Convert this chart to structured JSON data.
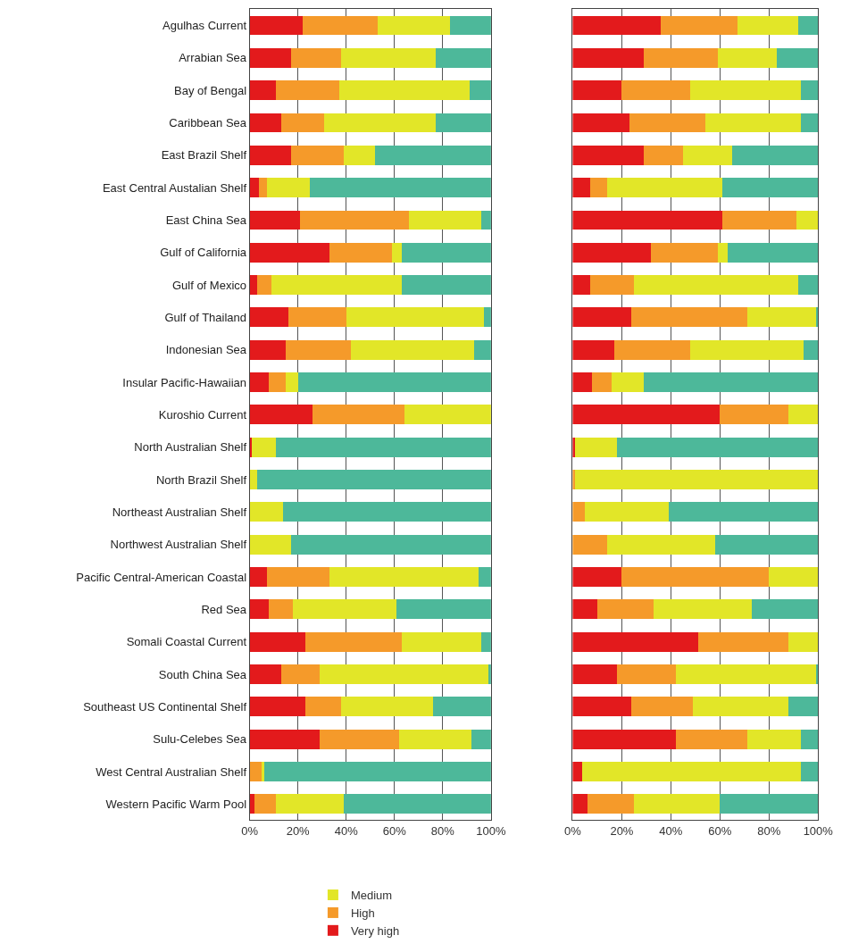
{
  "chart_data": [
    {
      "type": "bar",
      "orientation": "horizontal",
      "stacked": true,
      "grid": "x",
      "legend": "bottom",
      "categories": [
        "Agulhas Current",
        "Arrabian Sea",
        "Bay of Bengal",
        "Caribbean Sea",
        "East Brazil Shelf",
        "East Central Austalian Shelf",
        "East China Sea",
        "Gulf of California",
        "Gulf of Mexico",
        "Gulf of Thailand",
        "Indonesian Sea",
        "Insular Pacific-Hawaiian",
        "Kuroshio Current",
        "North Australian Shelf",
        "North Brazil Shelf",
        "Northeast Australian Shelf",
        "Northwest Australian Shelf",
        "Pacific Central-American Coastal",
        "Red Sea",
        "Somali Coastal Current",
        "South China Sea",
        "Southeast US Continental Shelf",
        "Sulu-Celebes Sea",
        "West Central Australian Shelf",
        "Western Pacific Warm Pool"
      ],
      "xlim": [
        0,
        100
      ],
      "xticks": [
        {
          "value": 0,
          "label": "0%"
        },
        {
          "value": 20,
          "label": "20%"
        },
        {
          "value": 40,
          "label": "40%"
        },
        {
          "value": 60,
          "label": "60%"
        },
        {
          "value": 80,
          "label": "80%"
        },
        {
          "value": 100,
          "label": "100%"
        }
      ],
      "series": [
        {
          "name": "Very high",
          "color": "#e31a1c",
          "values": [
            22,
            17,
            11,
            13,
            17,
            4,
            21,
            33,
            3,
            16,
            15,
            8,
            26,
            1,
            0,
            0,
            0,
            7,
            8,
            23,
            13,
            23,
            29,
            0,
            2
          ]
        },
        {
          "name": "High",
          "color": "#f59a2a",
          "values": [
            31,
            21,
            26,
            18,
            22,
            3,
            45,
            26,
            6,
            24,
            27,
            7,
            38,
            0,
            0,
            0,
            0,
            26,
            10,
            40,
            16,
            15,
            33,
            5,
            9
          ]
        },
        {
          "name": "Medium",
          "color": "#e2e628",
          "values": [
            30,
            39,
            54,
            46,
            13,
            18,
            30,
            4,
            54,
            57,
            51,
            5,
            36,
            10,
            3,
            14,
            17,
            62,
            43,
            33,
            70,
            38,
            30,
            1,
            28
          ]
        },
        {
          "color": "#4db89a",
          "values": [
            17,
            23,
            9,
            23,
            48,
            75,
            4,
            37,
            37,
            3,
            7,
            80,
            0,
            89,
            97,
            86,
            83,
            5,
            39,
            4,
            1,
            24,
            8,
            94,
            61
          ]
        }
      ]
    },
    {
      "type": "bar",
      "orientation": "horizontal",
      "stacked": true,
      "grid": "x",
      "tick_labels": "x",
      "categories": [
        null,
        null,
        null,
        null,
        null,
        null,
        null,
        null,
        null,
        null,
        null,
        null,
        null,
        null,
        null,
        null,
        null,
        null,
        null,
        null,
        null,
        null,
        null,
        null,
        null
      ],
      "xlim": [
        0,
        100
      ],
      "xticks": [
        {
          "value": 0,
          "label": "0%"
        },
        {
          "value": 20,
          "label": "20%"
        },
        {
          "value": 40,
          "label": "40%"
        },
        {
          "value": 60,
          "label": "60%"
        },
        {
          "value": 80,
          "label": "80%"
        },
        {
          "value": 100,
          "label": "100%"
        }
      ],
      "series": [
        {
          "color": "#e31a1c",
          "values": [
            36,
            29,
            20,
            23,
            29,
            7,
            61,
            32,
            7,
            24,
            17,
            8,
            60,
            1,
            0,
            0,
            0,
            20,
            10,
            51,
            18,
            24,
            42,
            4,
            6
          ]
        },
        {
          "color": "#f59a2a",
          "values": [
            31,
            30,
            28,
            31,
            16,
            7,
            30,
            27,
            18,
            47,
            31,
            8,
            28,
            0,
            1,
            5,
            14,
            60,
            23,
            37,
            24,
            25,
            29,
            0,
            19
          ]
        },
        {
          "color": "#e2e628",
          "values": [
            25,
            24,
            45,
            39,
            20,
            47,
            9,
            4,
            67,
            28,
            46,
            13,
            12,
            17,
            99,
            34,
            44,
            20,
            40,
            12,
            57,
            39,
            22,
            89,
            35
          ]
        },
        {
          "color": "#4db89a",
          "values": [
            8,
            17,
            7,
            7,
            35,
            39,
            0,
            37,
            8,
            1,
            6,
            71,
            0,
            82,
            0,
            61,
            42,
            0,
            27,
            0,
            1,
            12,
            7,
            7,
            40
          ]
        }
      ]
    }
  ]
}
